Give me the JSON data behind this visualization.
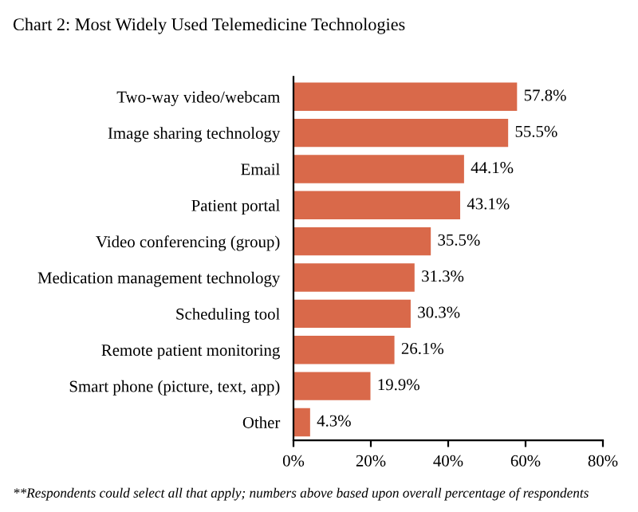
{
  "chart_data": {
    "type": "bar",
    "orientation": "horizontal",
    "title": "Chart 2: Most Widely Used Telemedicine Technologies",
    "categories": [
      "Two-way video/webcam",
      "Image sharing technology",
      "Email",
      "Patient portal",
      "Video conferencing (group)",
      "Medication management technology",
      "Scheduling tool",
      "Remote patient monitoring",
      "Smart phone (picture, text, app)",
      "Other"
    ],
    "values": [
      57.8,
      55.5,
      44.1,
      43.1,
      35.5,
      31.3,
      30.3,
      26.1,
      19.9,
      4.3
    ],
    "value_labels": [
      "57.8%",
      "55.5%",
      "44.1%",
      "43.1%",
      "35.5%",
      "31.3%",
      "30.3%",
      "26.1%",
      "19.9%",
      "4.3%"
    ],
    "color": "#d9694a",
    "xlim": [
      0,
      80
    ],
    "xticks": [
      {
        "value": 0,
        "label": "0%"
      },
      {
        "value": 20,
        "label": "20%"
      },
      {
        "value": 40,
        "label": "40%"
      },
      {
        "value": 60,
        "label": "60%"
      },
      {
        "value": 80,
        "label": "80%"
      }
    ],
    "grid": false,
    "annotations": [
      "**Respondents could select all that apply; numbers above based upon overall percentage of respondents"
    ]
  }
}
